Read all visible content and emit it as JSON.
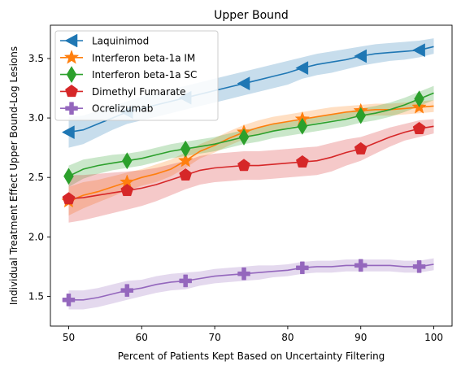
{
  "chart_data": {
    "type": "line",
    "title": "Upper Bound",
    "xlabel": "Percent of Patients Kept Based on Uncertainty Filtering",
    "ylabel": "Individual Treatment Effect Upper Bound-Log Lesions",
    "xlim": [
      47.5,
      102.5
    ],
    "ylim": [
      1.25,
      3.78
    ],
    "xticks": [
      50,
      60,
      70,
      80,
      90,
      100
    ],
    "yticks": [
      1.5,
      2.0,
      2.5,
      3.0,
      3.5
    ],
    "xtick_labels": [
      "50",
      "60",
      "70",
      "80",
      "90",
      "100"
    ],
    "ytick_labels": [
      "1.5",
      "2.0",
      "2.5",
      "3.0",
      "3.5"
    ],
    "legend_position": "top-left",
    "grid": false,
    "x": [
      50,
      52,
      54,
      56,
      58,
      60,
      62,
      64,
      66,
      68,
      70,
      72,
      74,
      76,
      78,
      80,
      82,
      84,
      86,
      88,
      90,
      92,
      94,
      96,
      98,
      100
    ],
    "marker_x": [
      50,
      58,
      66,
      74,
      82,
      90,
      98
    ],
    "series": [
      {
        "name": "Laquinimod",
        "color": "#1f77b4",
        "marker": "triangle-left",
        "values": [
          2.88,
          2.9,
          2.95,
          3.0,
          3.05,
          3.08,
          3.11,
          3.14,
          3.17,
          3.2,
          3.23,
          3.26,
          3.29,
          3.32,
          3.35,
          3.38,
          3.42,
          3.45,
          3.47,
          3.49,
          3.52,
          3.54,
          3.55,
          3.56,
          3.57,
          3.6
        ],
        "lower": [
          2.75,
          2.78,
          2.84,
          2.9,
          2.95,
          2.98,
          3.01,
          3.04,
          3.07,
          3.1,
          3.13,
          3.16,
          3.19,
          3.22,
          3.25,
          3.28,
          3.33,
          3.36,
          3.38,
          3.41,
          3.44,
          3.46,
          3.48,
          3.49,
          3.51,
          3.54
        ],
        "upper": [
          3.01,
          3.02,
          3.06,
          3.1,
          3.14,
          3.18,
          3.21,
          3.24,
          3.27,
          3.3,
          3.33,
          3.36,
          3.39,
          3.42,
          3.45,
          3.48,
          3.51,
          3.54,
          3.56,
          3.58,
          3.6,
          3.62,
          3.63,
          3.64,
          3.65,
          3.67
        ]
      },
      {
        "name": "Interferon beta-1a IM",
        "color": "#ff7f0e",
        "marker": "star",
        "values": [
          2.3,
          2.35,
          2.38,
          2.42,
          2.46,
          2.5,
          2.53,
          2.57,
          2.64,
          2.72,
          2.77,
          2.83,
          2.88,
          2.92,
          2.95,
          2.97,
          2.99,
          3.01,
          3.03,
          3.05,
          3.06,
          3.07,
          3.07,
          3.08,
          3.09,
          3.1
        ],
        "lower": [
          2.18,
          2.24,
          2.29,
          2.34,
          2.39,
          2.43,
          2.46,
          2.51,
          2.58,
          2.66,
          2.71,
          2.77,
          2.82,
          2.86,
          2.89,
          2.92,
          2.94,
          2.96,
          2.98,
          3.0,
          3.01,
          3.02,
          3.02,
          3.03,
          3.04,
          3.05
        ],
        "upper": [
          2.42,
          2.46,
          2.48,
          2.51,
          2.54,
          2.57,
          2.61,
          2.65,
          2.71,
          2.78,
          2.83,
          2.89,
          2.94,
          2.98,
          3.01,
          3.03,
          3.05,
          3.07,
          3.09,
          3.1,
          3.11,
          3.12,
          3.12,
          3.13,
          3.14,
          3.15
        ]
      },
      {
        "name": "Interferon beta-1a SC",
        "color": "#2ca02c",
        "marker": "diamond",
        "values": [
          2.51,
          2.57,
          2.6,
          2.62,
          2.64,
          2.66,
          2.69,
          2.72,
          2.74,
          2.76,
          2.78,
          2.81,
          2.84,
          2.86,
          2.89,
          2.91,
          2.93,
          2.95,
          2.97,
          2.99,
          3.02,
          3.04,
          3.07,
          3.11,
          3.16,
          3.21
        ],
        "lower": [
          2.42,
          2.49,
          2.53,
          2.56,
          2.58,
          2.6,
          2.63,
          2.66,
          2.68,
          2.7,
          2.72,
          2.75,
          2.78,
          2.8,
          2.83,
          2.85,
          2.87,
          2.89,
          2.91,
          2.93,
          2.96,
          2.98,
          3.01,
          3.05,
          3.1,
          3.15
        ],
        "upper": [
          2.6,
          2.65,
          2.67,
          2.69,
          2.7,
          2.72,
          2.75,
          2.78,
          2.8,
          2.82,
          2.84,
          2.87,
          2.9,
          2.92,
          2.95,
          2.97,
          2.99,
          3.01,
          3.03,
          3.05,
          3.08,
          3.1,
          3.13,
          3.17,
          3.22,
          3.27
        ]
      },
      {
        "name": "Dimethyl Fumarate",
        "color": "#d62728",
        "marker": "pentagon",
        "values": [
          2.32,
          2.33,
          2.35,
          2.37,
          2.39,
          2.41,
          2.44,
          2.48,
          2.52,
          2.56,
          2.58,
          2.59,
          2.6,
          2.6,
          2.61,
          2.62,
          2.63,
          2.64,
          2.67,
          2.71,
          2.74,
          2.79,
          2.84,
          2.88,
          2.91,
          2.93
        ],
        "lower": [
          2.12,
          2.14,
          2.17,
          2.2,
          2.23,
          2.26,
          2.3,
          2.35,
          2.4,
          2.44,
          2.46,
          2.47,
          2.48,
          2.48,
          2.49,
          2.5,
          2.51,
          2.52,
          2.55,
          2.6,
          2.64,
          2.7,
          2.76,
          2.81,
          2.84,
          2.87
        ],
        "upper": [
          2.52,
          2.52,
          2.53,
          2.54,
          2.55,
          2.56,
          2.58,
          2.61,
          2.64,
          2.68,
          2.7,
          2.71,
          2.72,
          2.72,
          2.73,
          2.74,
          2.75,
          2.76,
          2.79,
          2.82,
          2.84,
          2.88,
          2.92,
          2.95,
          2.98,
          2.99
        ]
      },
      {
        "name": "Ocrelizumab",
        "color": "#9467bd",
        "marker": "plus",
        "values": [
          1.47,
          1.47,
          1.49,
          1.52,
          1.55,
          1.57,
          1.6,
          1.62,
          1.63,
          1.65,
          1.67,
          1.68,
          1.69,
          1.7,
          1.71,
          1.72,
          1.74,
          1.75,
          1.75,
          1.76,
          1.76,
          1.76,
          1.76,
          1.75,
          1.75,
          1.77
        ],
        "lower": [
          1.39,
          1.39,
          1.41,
          1.44,
          1.47,
          1.5,
          1.53,
          1.55,
          1.56,
          1.59,
          1.61,
          1.62,
          1.63,
          1.64,
          1.66,
          1.67,
          1.69,
          1.7,
          1.7,
          1.71,
          1.71,
          1.71,
          1.71,
          1.7,
          1.7,
          1.72
        ],
        "upper": [
          1.55,
          1.55,
          1.57,
          1.6,
          1.63,
          1.64,
          1.67,
          1.69,
          1.7,
          1.71,
          1.73,
          1.74,
          1.75,
          1.76,
          1.76,
          1.77,
          1.79,
          1.8,
          1.8,
          1.81,
          1.81,
          1.81,
          1.81,
          1.8,
          1.8,
          1.82
        ]
      }
    ]
  }
}
